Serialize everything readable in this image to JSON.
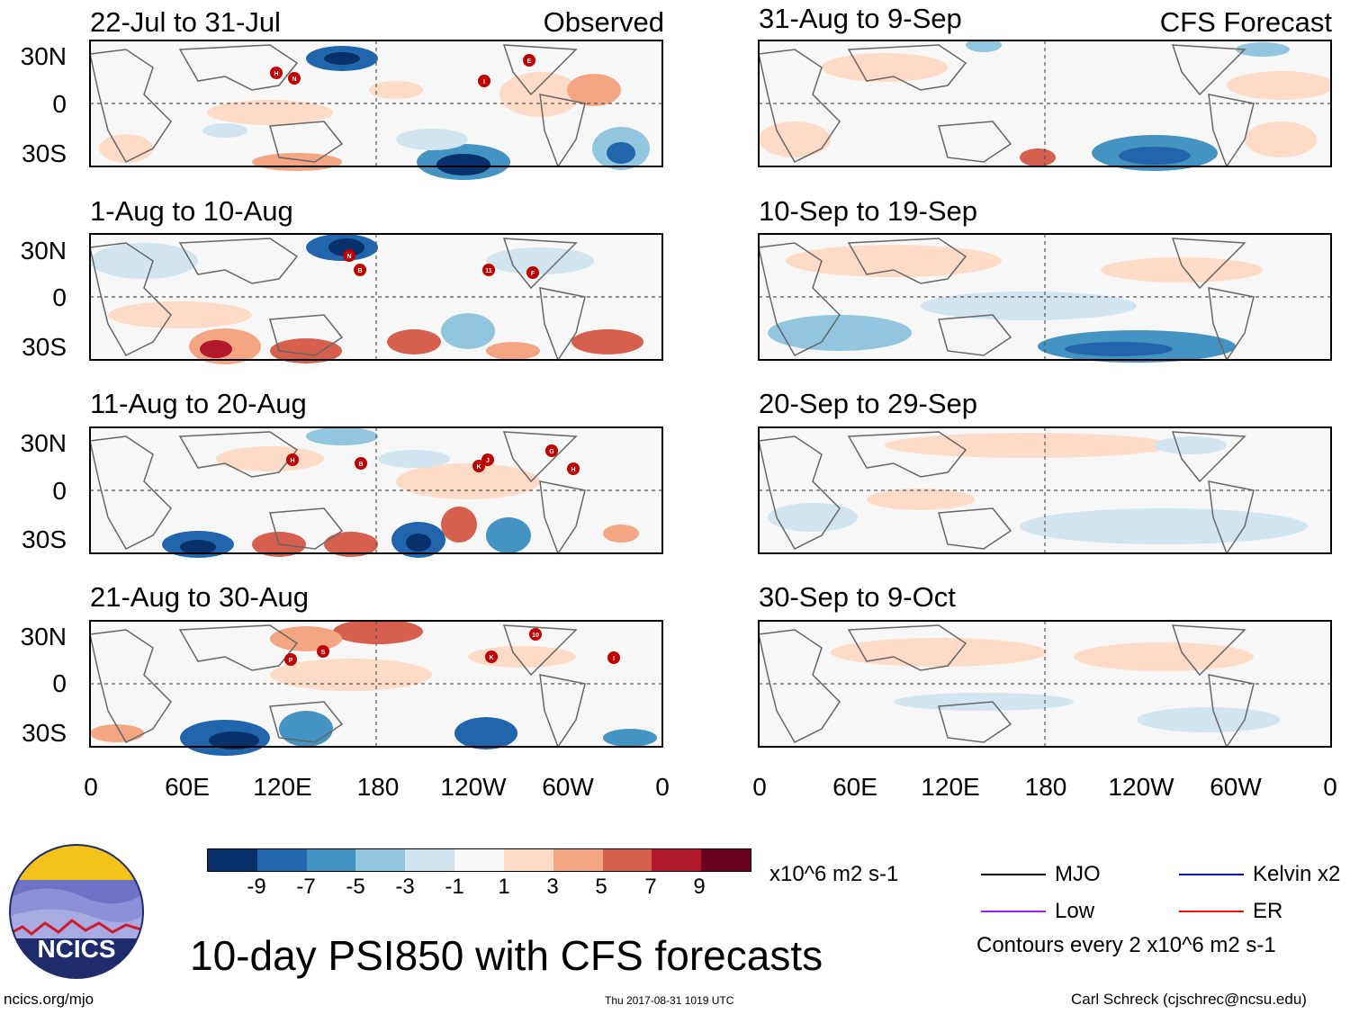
{
  "figure": {
    "main_title": "10-day PSI850 with CFS forecasts",
    "left_column_label": "Observed",
    "right_column_label": "CFS Forecast",
    "units": "x10^6 m2 s-1",
    "contour_note": "Contours every 2 x10^6 m2 s-1",
    "website": "ncics.org/mjo",
    "timestamp": "Thu 2017-08-31 1019 UTC",
    "author": "Carl Schreck (cjschrec@ncsu.edu)",
    "logo_text": "NCICS"
  },
  "panels": [
    {
      "period": "22-Jul to 31-Jul",
      "kind": "observed"
    },
    {
      "period": "1-Aug to 10-Aug",
      "kind": "observed"
    },
    {
      "period": "11-Aug to 20-Aug",
      "kind": "observed"
    },
    {
      "period": "21-Aug to 30-Aug",
      "kind": "observed"
    },
    {
      "period": "31-Aug to 9-Sep",
      "kind": "forecast"
    },
    {
      "period": "10-Sep to 19-Sep",
      "kind": "forecast"
    },
    {
      "period": "20-Sep to 29-Sep",
      "kind": "forecast"
    },
    {
      "period": "30-Sep to 9-Oct",
      "kind": "forecast"
    }
  ],
  "axes": {
    "lat_labels": [
      "30N",
      "0",
      "30S"
    ],
    "lon_labels": [
      "0",
      "60E",
      "120E",
      "180",
      "120W",
      "60W",
      "0"
    ]
  },
  "storm_markers": [
    [
      "H",
      "N",
      "I",
      "E"
    ],
    [
      "N",
      "B",
      "11",
      "F"
    ],
    [
      "H",
      "B",
      "K",
      "J",
      "G",
      "H"
    ],
    [
      "P",
      "S",
      "K",
      "10",
      "I"
    ]
  ],
  "colorbar": {
    "colors": [
      "#08306b",
      "#2166ac",
      "#4393c3",
      "#92c5de",
      "#d1e5f0",
      "#f7f7f7",
      "#fddbc7",
      "#f4a582",
      "#d6604d",
      "#b2182b",
      "#67001f"
    ],
    "labels": [
      "-9",
      "-7",
      "-5",
      "-3",
      "-1",
      "1",
      "3",
      "5",
      "7",
      "9"
    ]
  },
  "legend": [
    {
      "label": "MJO",
      "color": "#000000"
    },
    {
      "label": "Kelvin x2",
      "color": "#0000ff"
    },
    {
      "label": "Low",
      "color": "#a020f0"
    },
    {
      "label": "ER",
      "color": "#ff0000"
    }
  ]
}
